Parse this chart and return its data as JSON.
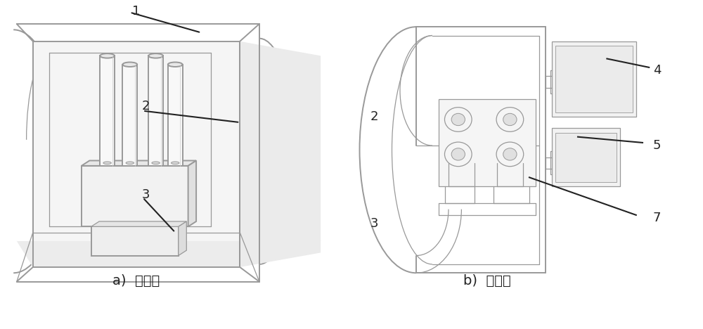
{
  "bg_color": "#ffffff",
  "line_color": "#aaaaaa",
  "line_color2": "#999999",
  "dark_line": "#222222",
  "fig_width": 10.0,
  "fig_height": 4.68,
  "label_a": "a)  视角一",
  "label_b": "b)  视角二",
  "font_size_numbers": 13,
  "font_size_caption": 14,
  "lw_outer": 1.4,
  "lw_inner": 0.9,
  "lw_annotation": 1.5
}
